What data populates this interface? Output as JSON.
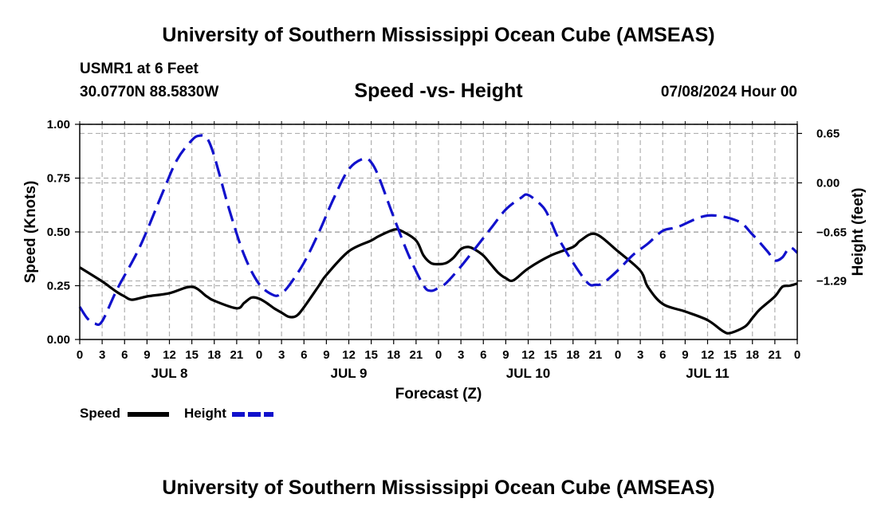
{
  "header": {
    "title": "University of Southern Mississippi Ocean Cube (AMSEAS)",
    "station": "USMR1 at 6 Feet",
    "coords": "30.0770N  88.5830W",
    "subtitle": "Speed -vs- Height",
    "datetime": "07/08/2024 Hour 00"
  },
  "footer": {
    "title": "University of Southern Mississippi Ocean Cube (AMSEAS)"
  },
  "legend": {
    "speed_label": "Speed",
    "height_label": "Height"
  },
  "colors": {
    "speed": "#000000",
    "height": "#1111cc",
    "grid": "#b0b0b0"
  },
  "chart_data": {
    "type": "line",
    "xlabel": "Forecast (Z)",
    "ylabel_left": "Speed (Knots)",
    "ylabel_right": "Height (feet)",
    "xlim": [
      0,
      96
    ],
    "ylim_left": [
      0,
      1.0
    ],
    "ylim_right": [
      -2.06,
      0.77
    ],
    "x_tick_labels": [
      "0",
      "3",
      "6",
      "9",
      "12",
      "15",
      "18",
      "21",
      "0",
      "3",
      "6",
      "9",
      "12",
      "15",
      "18",
      "21",
      "0",
      "3",
      "6",
      "9",
      "12",
      "15",
      "18",
      "21",
      "0",
      "3",
      "6",
      "9",
      "12",
      "15",
      "18",
      "21",
      "0"
    ],
    "y_left_ticks": [
      {
        "value": 0.0,
        "label": "0.00"
      },
      {
        "value": 0.25,
        "label": "0.25"
      },
      {
        "value": 0.5,
        "label": "0.50"
      },
      {
        "value": 0.75,
        "label": "0.75"
      },
      {
        "value": 1.0,
        "label": "1.00"
      }
    ],
    "y_right_ticks": [
      {
        "value": 0.65,
        "label": "0.65"
      },
      {
        "value": 0.0,
        "label": "0.00"
      },
      {
        "value": -0.65,
        "label": "−0.65"
      },
      {
        "value": -1.29,
        "label": "−1.29"
      }
    ],
    "day_labels": [
      {
        "hour": 12,
        "label": "JUL 8"
      },
      {
        "hour": 36,
        "label": "JUL 9"
      },
      {
        "hour": 60,
        "label": "JUL 10"
      },
      {
        "hour": 84,
        "label": "JUL 11"
      }
    ],
    "series": [
      {
        "name": "Speed",
        "axis": "left",
        "style": "solid",
        "x": [
          0,
          3,
          4,
          5,
          6,
          7,
          9,
          12,
          15,
          17,
          18,
          21,
          22,
          23,
          24,
          25,
          26,
          27,
          28,
          29,
          30,
          32,
          33,
          36,
          39,
          40,
          42,
          43,
          45,
          46,
          47,
          48,
          49,
          50,
          51,
          52,
          53,
          54,
          55,
          56,
          57,
          58,
          60,
          63,
          66,
          67,
          69,
          72,
          75,
          76,
          78,
          81,
          84,
          86,
          87,
          89,
          90,
          91,
          93,
          94,
          95,
          96
        ],
        "values": [
          0.335,
          0.27,
          0.245,
          0.22,
          0.2,
          0.185,
          0.2,
          0.215,
          0.245,
          0.2,
          0.18,
          0.145,
          0.17,
          0.195,
          0.19,
          0.17,
          0.145,
          0.125,
          0.105,
          0.11,
          0.15,
          0.25,
          0.3,
          0.41,
          0.46,
          0.48,
          0.51,
          0.505,
          0.46,
          0.39,
          0.355,
          0.35,
          0.355,
          0.38,
          0.42,
          0.43,
          0.415,
          0.39,
          0.35,
          0.31,
          0.285,
          0.275,
          0.33,
          0.39,
          0.43,
          0.46,
          0.49,
          0.41,
          0.32,
          0.245,
          0.165,
          0.13,
          0.09,
          0.04,
          0.03,
          0.06,
          0.1,
          0.14,
          0.2,
          0.245,
          0.25,
          0.26
        ]
      },
      {
        "name": "Height",
        "axis": "right",
        "style": "dashed",
        "x": [
          0,
          1,
          2,
          3,
          5,
          8,
          11,
          13,
          15,
          16,
          17,
          18,
          20,
          22,
          24,
          26,
          27,
          28,
          30,
          32,
          34,
          36,
          38,
          39,
          40,
          42,
          44,
          46,
          47,
          48,
          49,
          51,
          53,
          55,
          57,
          59,
          60,
          62,
          63,
          64,
          66,
          68,
          69,
          70,
          72,
          74,
          76,
          78,
          80,
          84,
          88,
          90,
          92,
          93,
          94,
          95,
          96
        ],
        "values": [
          -1.63,
          -1.78,
          -1.85,
          -1.82,
          -1.4,
          -0.85,
          -0.15,
          0.3,
          0.56,
          0.62,
          0.59,
          0.35,
          -0.35,
          -0.95,
          -1.33,
          -1.48,
          -1.45,
          -1.35,
          -1.05,
          -0.65,
          -0.2,
          0.18,
          0.32,
          0.27,
          0.08,
          -0.45,
          -0.95,
          -1.35,
          -1.42,
          -1.38,
          -1.32,
          -1.1,
          -0.85,
          -0.6,
          -0.35,
          -0.2,
          -0.16,
          -0.32,
          -0.5,
          -0.72,
          -1.05,
          -1.32,
          -1.34,
          -1.32,
          -1.15,
          -0.95,
          -0.8,
          -0.63,
          -0.58,
          -0.43,
          -0.5,
          -0.68,
          -0.9,
          -1.02,
          -0.98,
          -0.85,
          -0.92
        ]
      }
    ]
  }
}
